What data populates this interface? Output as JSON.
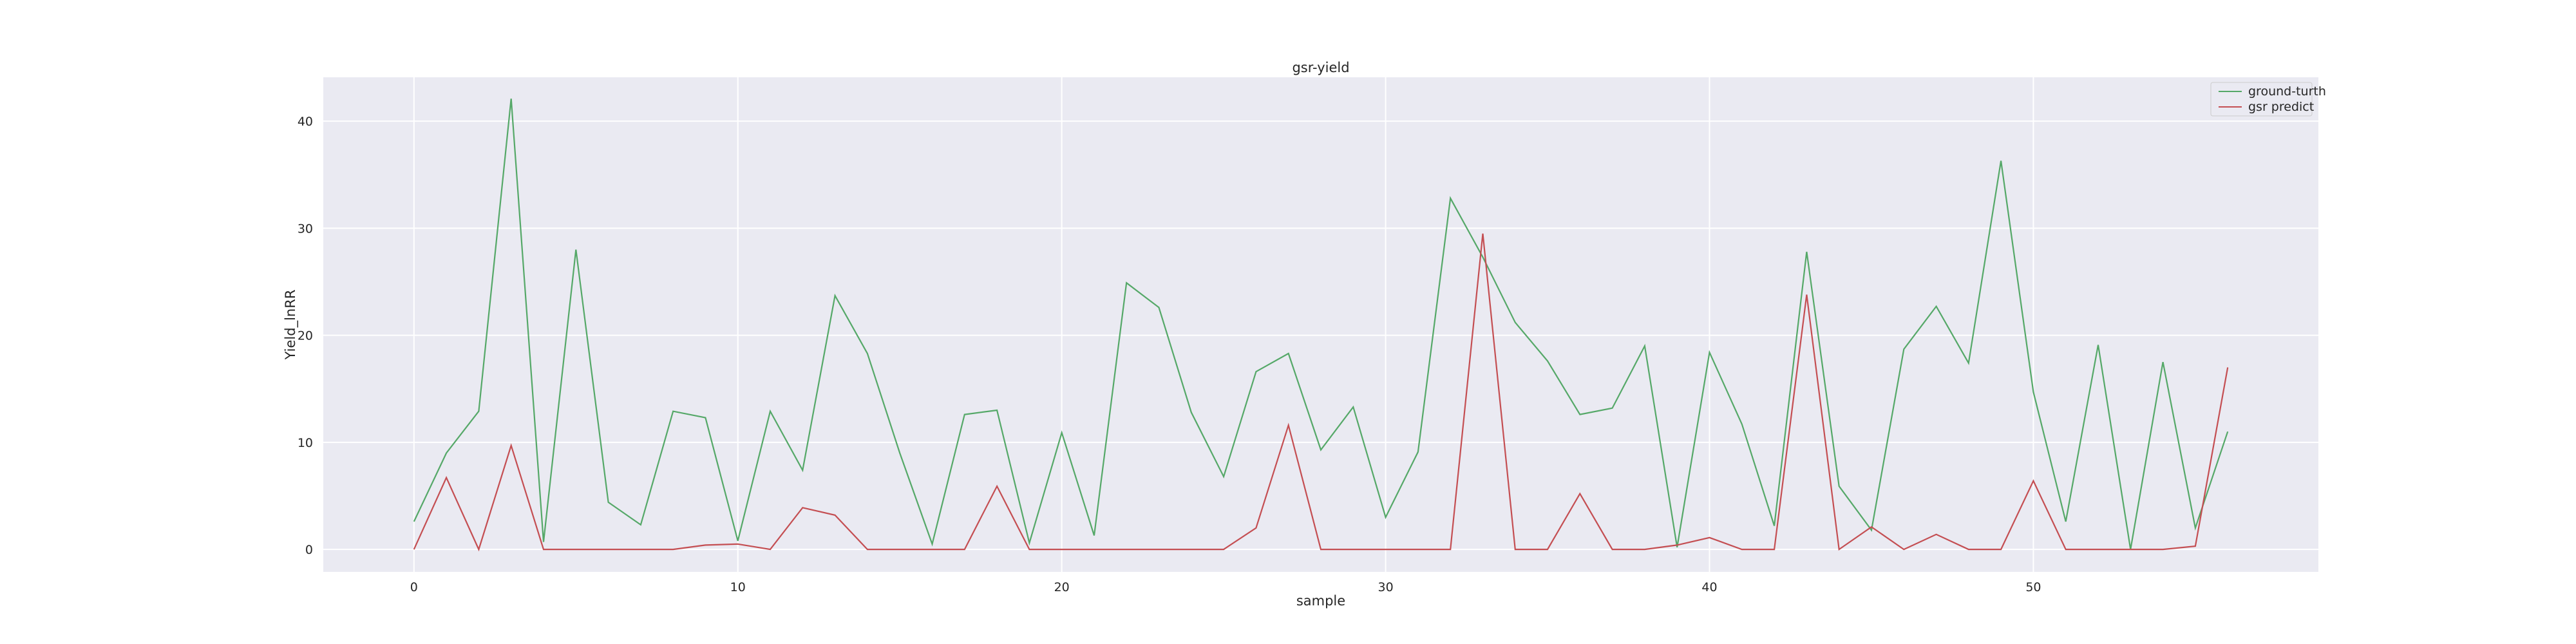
{
  "chart_data": {
    "type": "line",
    "title": "gsr-yield",
    "xlabel": "sample",
    "ylabel": "Yield_lnRR",
    "xlim": [
      -2.8,
      58.8
    ],
    "ylim": [
      -2.1,
      44.1
    ],
    "xticks": [
      0,
      10,
      20,
      30,
      40,
      50
    ],
    "yticks": [
      0,
      10,
      20,
      30,
      40
    ],
    "grid": true,
    "legend_position": "top-right",
    "x": [
      0,
      1,
      2,
      3,
      4,
      5,
      6,
      7,
      8,
      9,
      10,
      11,
      12,
      13,
      14,
      15,
      16,
      17,
      18,
      19,
      20,
      21,
      22,
      23,
      24,
      25,
      26,
      27,
      28,
      29,
      30,
      31,
      32,
      33,
      34,
      35,
      36,
      37,
      38,
      39,
      40,
      41,
      42,
      43,
      44,
      45,
      46,
      47,
      48,
      49,
      50,
      51,
      52,
      53,
      54,
      55,
      56
    ],
    "series": [
      {
        "name": "ground-turth",
        "color": "#55a868",
        "values": [
          2.6,
          9.0,
          12.9,
          42.1,
          0.7,
          28.0,
          4.4,
          2.3,
          12.9,
          12.3,
          0.8,
          12.9,
          7.4,
          23.7,
          18.3,
          9.0,
          0.5,
          12.6,
          13.0,
          0.6,
          10.9,
          1.3,
          24.9,
          22.6,
          12.8,
          6.8,
          16.6,
          18.3,
          9.3,
          13.3,
          3.0,
          9.1,
          32.8,
          27.3,
          21.2,
          17.6,
          12.6,
          13.2,
          19.0,
          0.2,
          18.4,
          11.7,
          2.2,
          27.8,
          5.9,
          1.8,
          18.7,
          22.7,
          17.4,
          36.3,
          14.7,
          2.6,
          19.1,
          0.0,
          17.5,
          2.0,
          11.0
        ]
      },
      {
        "name": "gsr predict",
        "color": "#c44e52",
        "values": [
          0.0,
          6.7,
          0.0,
          9.7,
          0.0,
          0.0,
          0.0,
          0.0,
          0.0,
          0.4,
          0.5,
          0.0,
          3.9,
          3.2,
          0.0,
          0.0,
          0.0,
          0.0,
          5.9,
          0.0,
          0.0,
          0.0,
          0.0,
          0.0,
          0.0,
          0.0,
          2.0,
          11.6,
          0.0,
          0.0,
          0.0,
          0.0,
          0.0,
          29.5,
          0.0,
          0.0,
          5.2,
          0.0,
          0.0,
          0.4,
          1.1,
          0.0,
          0.0,
          23.8,
          0.0,
          2.1,
          0.0,
          1.4,
          0.0,
          0.0,
          6.4,
          0.0,
          0.0,
          0.0,
          0.0,
          0.3,
          17.0
        ]
      }
    ]
  }
}
